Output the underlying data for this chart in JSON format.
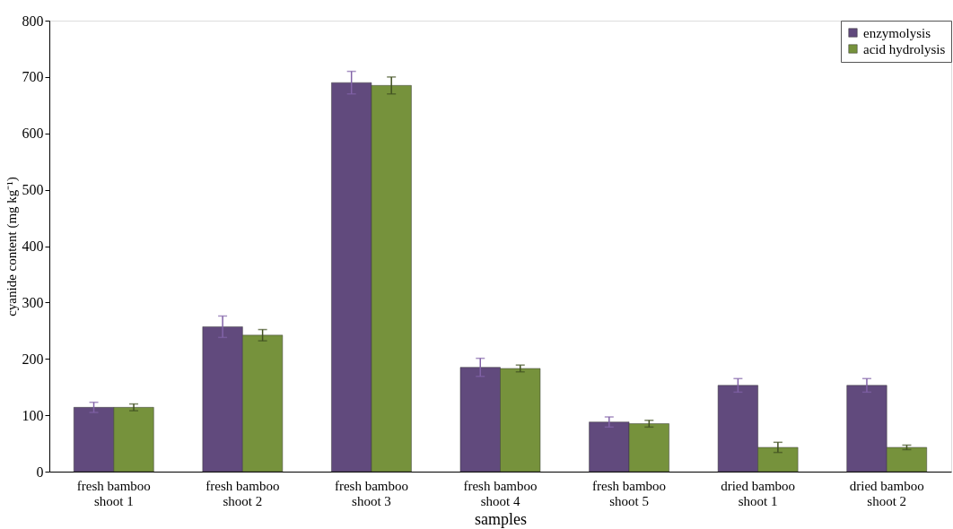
{
  "chart_data": {
    "type": "bar",
    "xlabel": "samples",
    "ylabel": "cyanide content (mg kg⁻¹)",
    "categories": [
      "fresh bamboo shoot 1",
      "fresh bamboo shoot 2",
      "fresh bamboo shoot 3",
      "fresh bamboo shoot 4",
      "fresh bamboo shoot 5",
      "dried bamboo shoot 1",
      "dried bamboo shoot 2"
    ],
    "series": [
      {
        "name": "enzymolysis",
        "color": "#614a7d",
        "values": [
          114,
          257,
          690,
          185,
          88,
          153,
          153
        ],
        "errors": [
          9,
          19,
          20,
          16,
          9,
          12,
          12
        ]
      },
      {
        "name": "acid hydrolysis",
        "color": "#76923c",
        "values": [
          114,
          242,
          685,
          183,
          85,
          43,
          43
        ],
        "errors": [
          6,
          10,
          15,
          6,
          6,
          9,
          4
        ]
      }
    ],
    "ylim": [
      0,
      800
    ],
    "yticks": [
      0,
      100,
      200,
      300,
      400,
      500,
      600,
      700,
      800
    ],
    "legend": "top right",
    "grid": false
  }
}
